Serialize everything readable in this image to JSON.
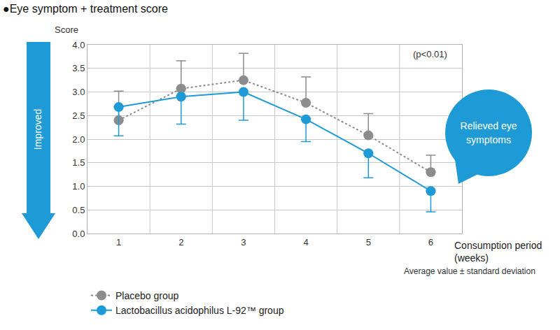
{
  "chart_data": {
    "type": "line",
    "title": "●Eye symptom + treatment score",
    "y_label": "Score",
    "x_label": "Consumption period (weeks)",
    "arrow_label": "Improved",
    "note": "(p<0.01)",
    "callout": "Relieved eye symptoms",
    "footnote": "Average value ± standard deviation",
    "x": [
      1,
      2,
      3,
      4,
      5,
      6
    ],
    "xlim": [
      0.5,
      6.5
    ],
    "xticks": [
      1,
      2,
      3,
      4,
      5,
      6
    ],
    "ylim": [
      0,
      4
    ],
    "yticks": [
      {
        "value": 0,
        "label": "0.0"
      },
      0.5,
      {
        "value": 1,
        "label": "1.0"
      },
      1.5,
      {
        "value": 2,
        "label": "2.0"
      },
      2.5,
      {
        "value": 3,
        "label": "3.0"
      },
      3.5,
      {
        "value": 4,
        "label": "4.0"
      }
    ],
    "grid": true,
    "legend": "bottom left",
    "series": [
      {
        "name": "Placebo group",
        "color": "#8c8c8c",
        "line_style": "dotted",
        "marker": "circle",
        "values": [
          2.4,
          3.07,
          3.25,
          2.77,
          2.08,
          1.3
        ],
        "error_plus": [
          0.62,
          0.59,
          0.57,
          0.55,
          0.46,
          0.36
        ]
      },
      {
        "name": "Lactobacillus acidophilus L-92™ group",
        "color": "#1e9bd7",
        "line_style": "solid",
        "marker": "circle",
        "values": [
          2.68,
          2.9,
          3.0,
          2.42,
          1.7,
          0.9
        ],
        "error_minus": [
          0.61,
          0.58,
          0.6,
          0.47,
          0.52,
          0.44
        ]
      }
    ]
  }
}
